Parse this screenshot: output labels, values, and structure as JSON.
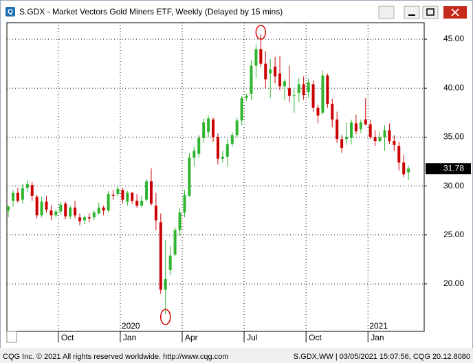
{
  "window_title": "S.GDX - Market Vectors Gold Miners ETF, Weekly (Delayed by 15 mins)",
  "status_left": "CQG Inc. © 2021 All rights reserved worldwide. http://www.cqg.com",
  "status_right": "S.GDX,WW | 03/05/2021 15:07:56, CQG 20.12.8080",
  "chart_data": {
    "type": "candlestick",
    "up_color": "#2fb52f",
    "down_color": "#cc0000",
    "grid": true,
    "candles": {
      "open": [
        27.5,
        28.5,
        29.3,
        28.6,
        29.8,
        30.1,
        28.9,
        27.0,
        28.4,
        27.5,
        27.0,
        27.4,
        28.2,
        26.9,
        27.8,
        26.8,
        26.5,
        26.8,
        26.8,
        27.2,
        27.8,
        27.5,
        29.1,
        29.2,
        29.6,
        28.4,
        29.3,
        28.5,
        28.0,
        28.6,
        30.5,
        28.0,
        26.3,
        19.4,
        21.4,
        23.0,
        25.5,
        27.3,
        29.0,
        32.9,
        33.3,
        34.9,
        35.5,
        36.8,
        35.0,
        32.8,
        33.0,
        34.3,
        35.2,
        36.7,
        39.0,
        39.4,
        42.3,
        44.0,
        42.5,
        41.5,
        42.2,
        41.5,
        40.2,
        40.0,
        39.2,
        39.5,
        40.4,
        39.6,
        40.4,
        38.0,
        37.5,
        41.3,
        38.4,
        36.8,
        34.8,
        34.8,
        34.9,
        36.4,
        35.8,
        36.8,
        36.3,
        35.0,
        34.6,
        35.0,
        35.7,
        34.6,
        34.1,
        32.4,
        31.4
      ],
      "high": [
        28.0,
        29.6,
        29.8,
        30.2,
        30.6,
        30.4,
        29.1,
        28.9,
        29.0,
        28.0,
        27.6,
        28.4,
        28.4,
        28.0,
        28.5,
        27.2,
        27.0,
        27.2,
        27.5,
        28.3,
        28.0,
        29.5,
        29.6,
        30.0,
        29.8,
        29.5,
        29.4,
        29.2,
        29.0,
        30.7,
        31.8,
        29.3,
        27.2,
        24.5,
        23.9,
        25.8,
        27.7,
        29.6,
        33.4,
        34.0,
        35.2,
        36.9,
        37.2,
        37.0,
        35.4,
        33.6,
        34.8,
        35.5,
        37.0,
        39.2,
        39.4,
        42.9,
        44.5,
        45.5,
        43.8,
        43.0,
        43.2,
        43.3,
        40.9,
        42.3,
        39.9,
        41.0,
        41.2,
        41.0,
        40.8,
        38.3,
        41.8,
        41.5,
        38.9,
        37.6,
        35.2,
        36.5,
        36.8,
        37.3,
        36.8,
        39.0,
        36.8,
        35.7,
        35.5,
        36.2,
        36.4,
        35.2,
        34.5,
        33.2,
        32.1
      ],
      "low": [
        26.8,
        27.9,
        28.3,
        28.2,
        29.4,
        28.5,
        26.7,
        26.8,
        27.3,
        26.5,
        26.8,
        27.1,
        26.6,
        26.6,
        26.7,
        26.0,
        26.1,
        26.3,
        26.5,
        27.1,
        27.0,
        27.3,
        28.6,
        28.9,
        28.2,
        28.0,
        28.2,
        27.8,
        27.8,
        28.4,
        28.0,
        25.5,
        19.0,
        16.9,
        20.9,
        22.8,
        24.9,
        26.8,
        28.9,
        32.0,
        32.9,
        34.4,
        35.0,
        34.5,
        32.2,
        32.4,
        32.0,
        34.0,
        35.0,
        36.2,
        38.7,
        38.8,
        41.0,
        42.2,
        40.0,
        39.0,
        40.5,
        39.8,
        38.8,
        38.6,
        37.5,
        38.6,
        38.8,
        39.0,
        37.6,
        36.4,
        37.3,
        38.0,
        36.0,
        34.4,
        33.4,
        34.2,
        34.3,
        35.3,
        35.4,
        36.2,
        34.8,
        34.1,
        34.5,
        33.6,
        34.3,
        33.6,
        31.6,
        30.9,
        30.6
      ],
      "close": [
        27.9,
        29.3,
        28.5,
        29.8,
        30.2,
        29.0,
        27.0,
        28.4,
        27.6,
        27.0,
        27.4,
        28.1,
        26.9,
        27.8,
        27.0,
        26.4,
        26.8,
        26.7,
        27.3,
        27.8,
        27.5,
        29.2,
        29.0,
        29.7,
        28.6,
        29.3,
        28.5,
        28.0,
        28.5,
        30.5,
        28.2,
        26.5,
        19.4,
        20.5,
        22.9,
        25.5,
        27.3,
        29.1,
        32.9,
        33.6,
        34.9,
        36.5,
        36.9,
        35.0,
        32.8,
        33.0,
        34.3,
        35.2,
        36.7,
        39.0,
        39.2,
        42.3,
        44.0,
        42.5,
        40.9,
        41.9,
        41.2,
        40.2,
        40.7,
        39.2,
        39.3,
        40.4,
        39.3,
        40.6,
        38.0,
        37.2,
        41.3,
        38.4,
        36.8,
        34.8,
        33.9,
        35.0,
        36.5,
        35.6,
        36.5,
        36.3,
        35.0,
        34.6,
        35.0,
        35.7,
        34.6,
        34.2,
        32.4,
        31.2,
        31.78
      ]
    },
    "xlim": [
      -0.3,
      87.3
    ],
    "xticks": [
      {
        "value": 10.5,
        "label": "Oct"
      },
      {
        "value": 23.5,
        "label": "Jan"
      },
      {
        "value": 36.5,
        "label": "Apr"
      },
      {
        "value": 49.5,
        "label": "Jul"
      },
      {
        "value": 62.5,
        "label": "Oct"
      },
      {
        "value": 75.5,
        "label": "Jan"
      }
    ],
    "year_labels": [
      {
        "value": 23.5,
        "label": "2020"
      },
      {
        "value": 75.5,
        "label": "2021"
      }
    ],
    "ylim": [
      15.15,
      46.69
    ],
    "yticks": [
      {
        "value": 20,
        "label": "20.00"
      },
      {
        "value": 25,
        "label": "25.00"
      },
      {
        "value": 30,
        "label": "30.00"
      },
      {
        "value": 35,
        "label": "35.00"
      },
      {
        "value": 40,
        "label": "40.00"
      },
      {
        "value": 45,
        "label": "45.00"
      }
    ]
  }
}
